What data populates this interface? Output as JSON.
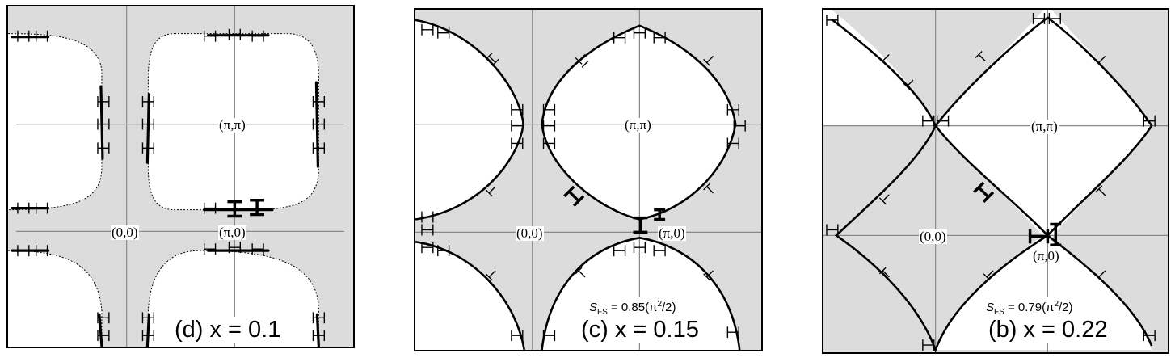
{
  "panels": [
    {
      "id": "d",
      "caption": "(d) x = 0.1",
      "labels": {
        "pi_pi": "(π,π)",
        "origin": "(0,0)",
        "pi_0": "(π,0)"
      }
    },
    {
      "id": "c",
      "caption": "(c) x = 0.15",
      "labels": {
        "pi_pi": "(π,π)",
        "origin": "(0,0)",
        "pi_0": "(π,0)"
      },
      "sfs": {
        "symbol": "S",
        "subscript": "FS",
        "value": " = 0.85(π",
        "power": "2",
        "tail": "/2)"
      }
    },
    {
      "id": "b",
      "caption": "(b) x = 0.22",
      "labels": {
        "pi_pi": "(π,π)",
        "origin": "(0,0)",
        "pi_0": "(π,0)"
      },
      "sfs": {
        "symbol": "S",
        "subscript": "FS",
        "value": " = 0.79(π",
        "power": "2",
        "tail": "/2)"
      }
    }
  ],
  "colors": {
    "filled_region": "#dcdcdc",
    "contour": "#000000",
    "axis": "#888888"
  }
}
